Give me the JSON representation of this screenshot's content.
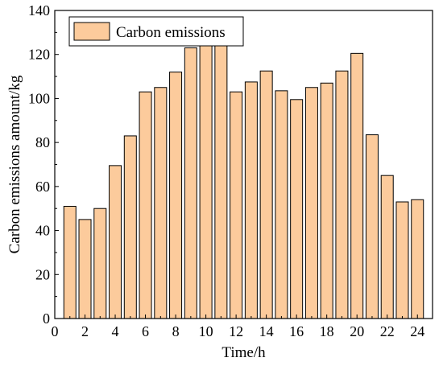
{
  "chart_data": {
    "type": "bar",
    "title": "",
    "xlabel": "Time/h",
    "ylabel": "Carbon emissions amount/kg",
    "x": [
      1,
      2,
      3,
      4,
      5,
      6,
      7,
      8,
      9,
      10,
      11,
      12,
      13,
      14,
      15,
      16,
      17,
      18,
      19,
      20,
      21,
      22,
      23,
      24
    ],
    "series": [
      {
        "name": "Carbon emissions",
        "values": [
          51,
          45,
          50,
          69.5,
          83,
          103,
          105,
          112,
          123,
          131,
          126.5,
          103,
          107.5,
          112.5,
          103.5,
          99.5,
          105,
          107,
          112.5,
          120.5,
          83.5,
          65,
          53,
          54
        ],
        "color": "#FCCB9C"
      }
    ],
    "xlim": [
      0,
      25
    ],
    "ylim": [
      0,
      140
    ],
    "xticks": [
      0,
      2,
      4,
      6,
      8,
      10,
      12,
      14,
      16,
      18,
      20,
      22,
      24
    ],
    "yticks": [
      0,
      20,
      40,
      60,
      80,
      100,
      120,
      140
    ],
    "grid": false,
    "legend_position": "top-left"
  }
}
